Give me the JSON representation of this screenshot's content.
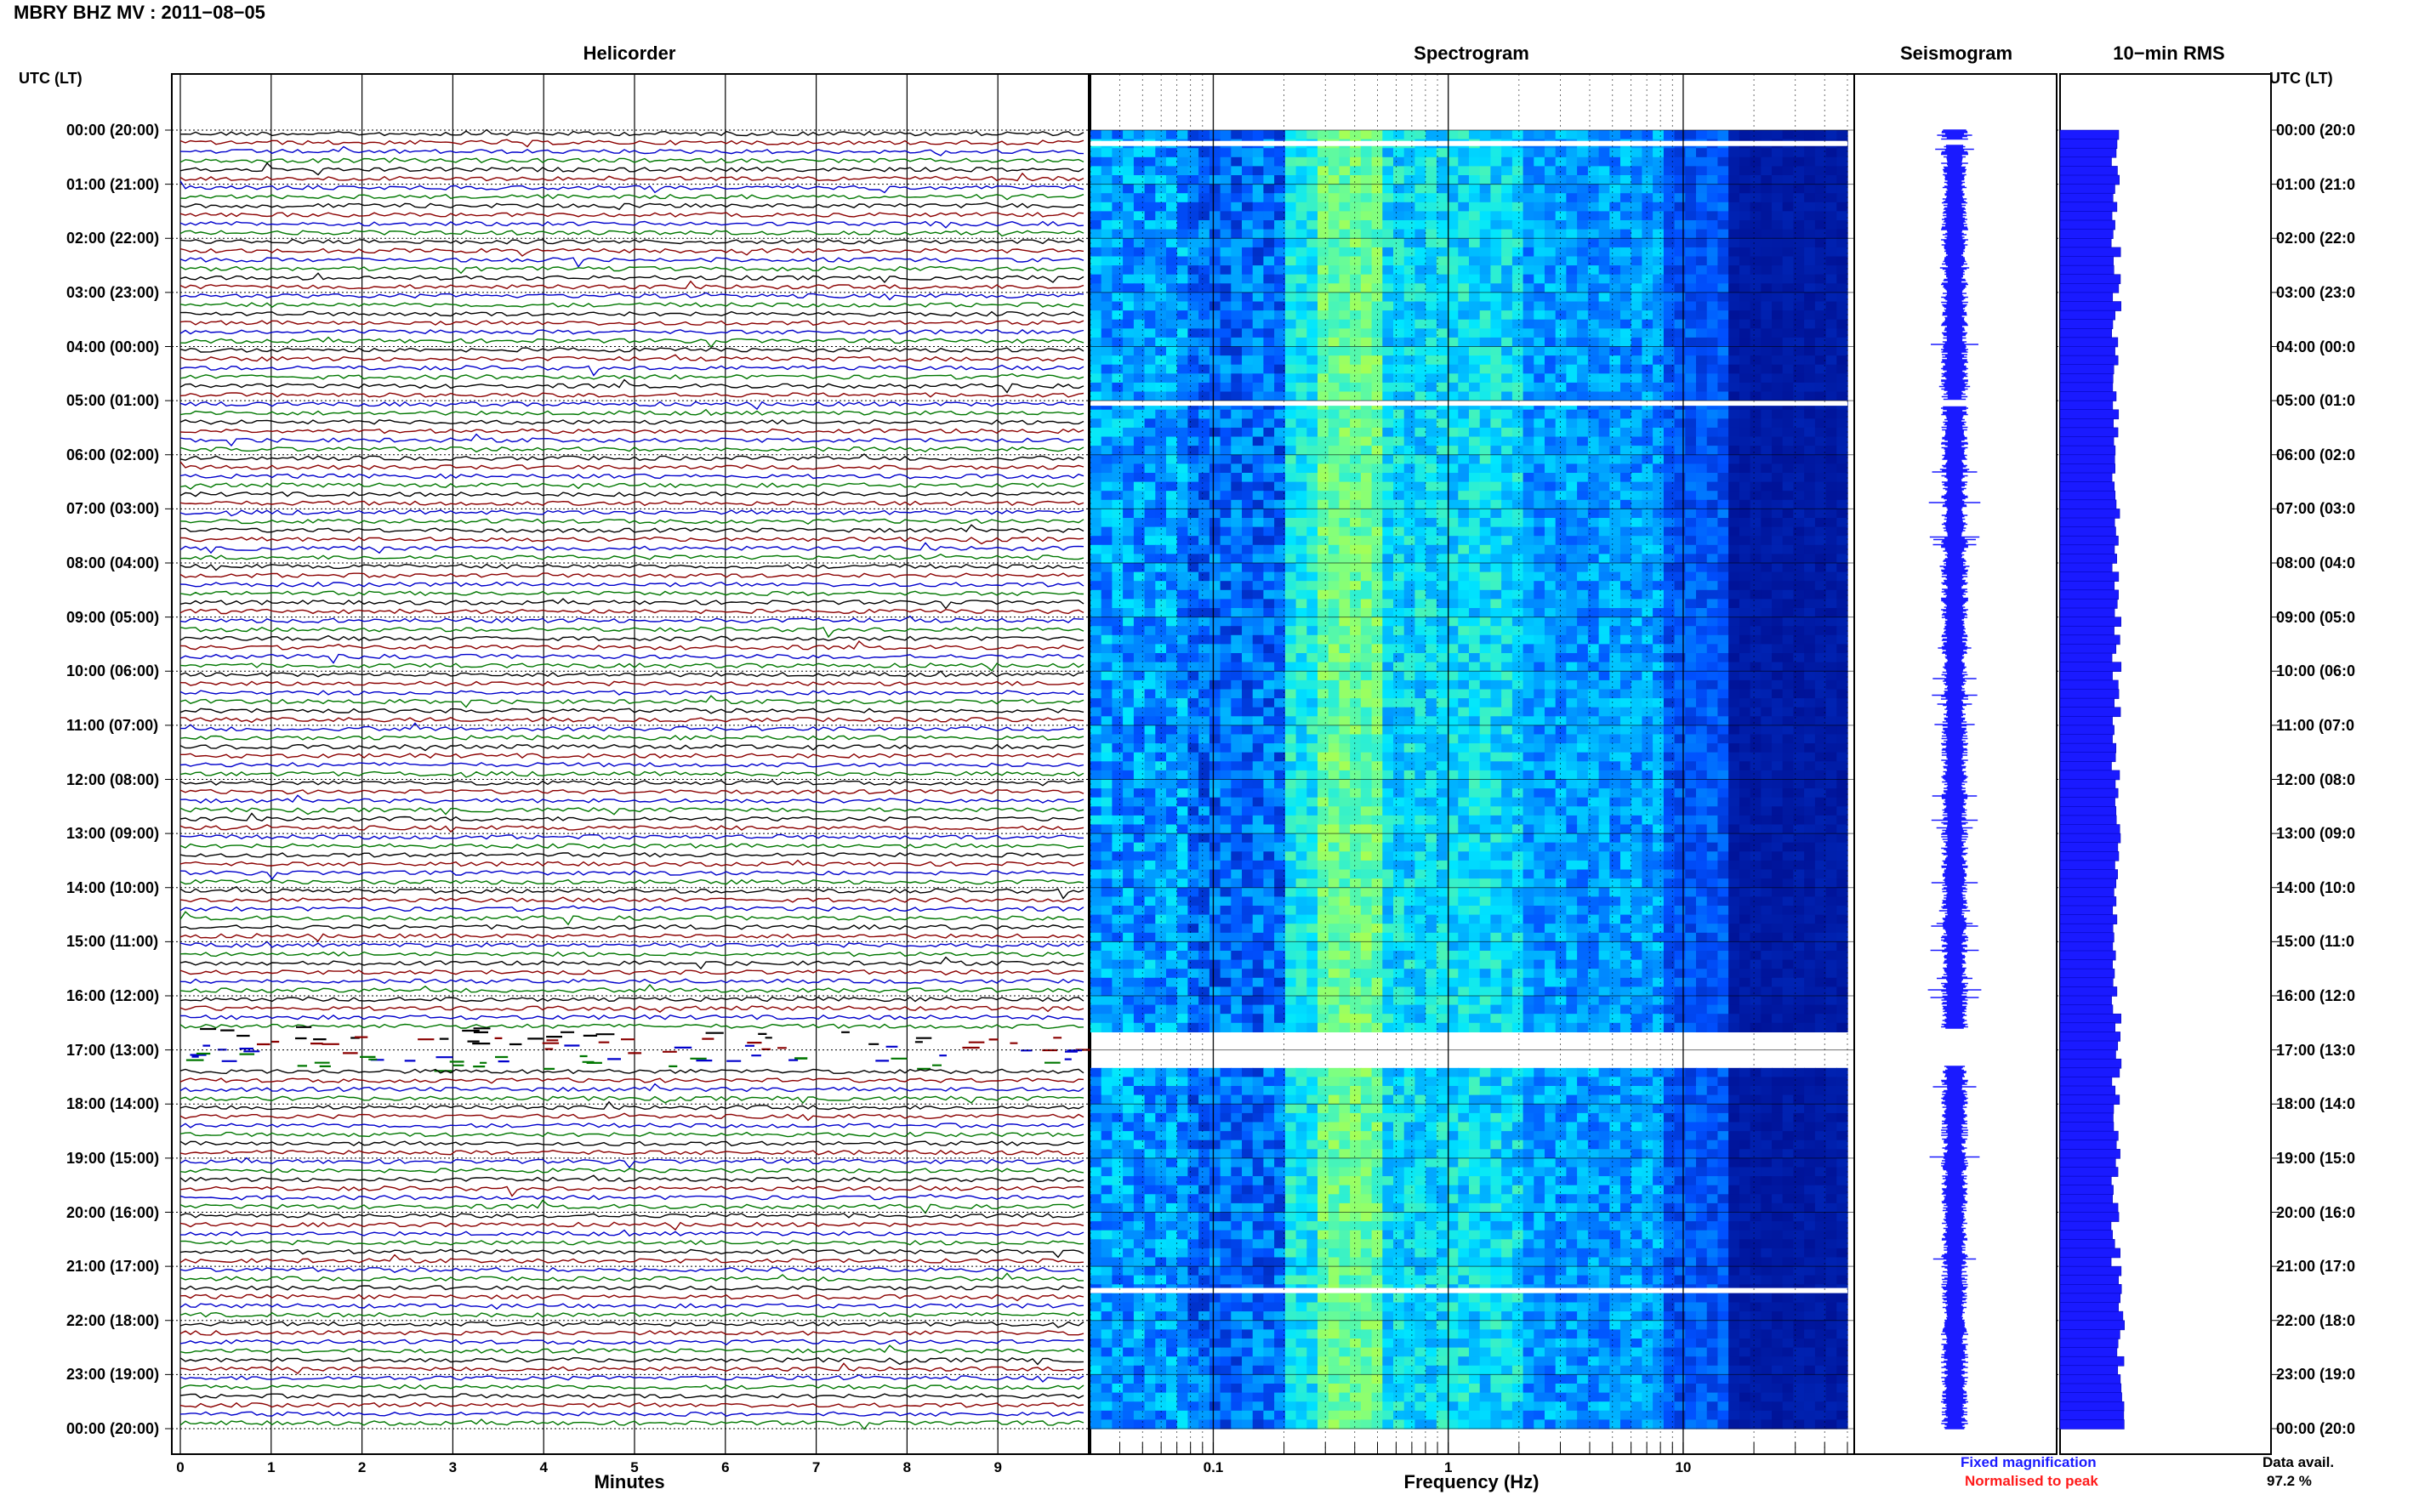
{
  "header": {
    "title": "MBRY BHZ MV : 2011−08−05"
  },
  "panels": {
    "helicorder": "Helicorder",
    "spectrogram": "Spectrogram",
    "seismogram": "Seismogram",
    "rms": "10−min RMS"
  },
  "axes": {
    "left_label": "UTC (LT)",
    "right_label": "UTC (LT)",
    "helicorder_xlabel": "Minutes",
    "spectrogram_xlabel": "Frequency (Hz)",
    "minute_ticks": [
      "0",
      "1",
      "2",
      "3",
      "4",
      "5",
      "6",
      "7",
      "8",
      "9"
    ],
    "freq_ticks": [
      "0.1",
      "1",
      "10"
    ],
    "time_labels": [
      "00:00 (20:00)",
      "01:00 (21:00)",
      "02:00 (22:00)",
      "03:00 (23:00)",
      "04:00 (00:00)",
      "05:00 (01:00)",
      "06:00 (02:00)",
      "07:00 (03:00)",
      "08:00 (04:00)",
      "09:00 (05:00)",
      "10:00 (06:00)",
      "11:00 (07:00)",
      "12:00 (08:00)",
      "13:00 (09:00)",
      "14:00 (10:00)",
      "15:00 (11:00)",
      "16:00 (12:00)",
      "17:00 (13:00)",
      "18:00 (14:00)",
      "19:00 (15:00)",
      "20:00 (16:00)",
      "21:00 (17:00)",
      "22:00 (18:00)",
      "23:00 (19:00)",
      "00:00 (20:00)"
    ],
    "time_labels_right": [
      "00:00 (20:0",
      "01:00 (21:0",
      "02:00 (22:0",
      "03:00 (23:0",
      "04:00 (00:0",
      "05:00 (01:0",
      "06:00 (02:0",
      "07:00 (03:0",
      "08:00 (04:0",
      "09:00 (05:0",
      "10:00 (06:0",
      "11:00 (07:0",
      "12:00 (08:0",
      "13:00 (09:0",
      "14:00 (10:0",
      "15:00 (11:0",
      "16:00 (12:0",
      "17:00 (13:0",
      "18:00 (14:0",
      "19:00 (15:0",
      "20:00 (16:0",
      "21:00 (17:0",
      "22:00 (18:0",
      "23:00 (19:0",
      "00:00 (20:0"
    ]
  },
  "legend": {
    "fixed": "Fixed magnification",
    "normalised": "Normalised to peak",
    "avail_label": "Data avail.",
    "avail_value": "97.2 %"
  },
  "colors": {
    "trace_cycle": [
      "#000000",
      "#8b0000",
      "#0000cc",
      "#007700"
    ],
    "seismogram": "#1a1aff",
    "rms": "#1a1aff"
  },
  "chart_data": {
    "type": "heatmap",
    "description_fields": {
      "station": "MBRY",
      "channel": "BHZ",
      "network": "MV",
      "date": "2011-08-05"
    },
    "helicorder": {
      "xlabel": "Minutes",
      "xlim": [
        0,
        10
      ],
      "rows_per_hour": 6,
      "hours": 24
    },
    "spectrogram": {
      "xlabel": "Frequency (Hz)",
      "xscale": "log",
      "xlim": [
        0.03,
        50
      ],
      "data_gaps_utc": [
        "00:10",
        "05:00",
        "16:40-17:20",
        "21:30"
      ]
    },
    "rms": {
      "window": "10-min"
    }
  }
}
